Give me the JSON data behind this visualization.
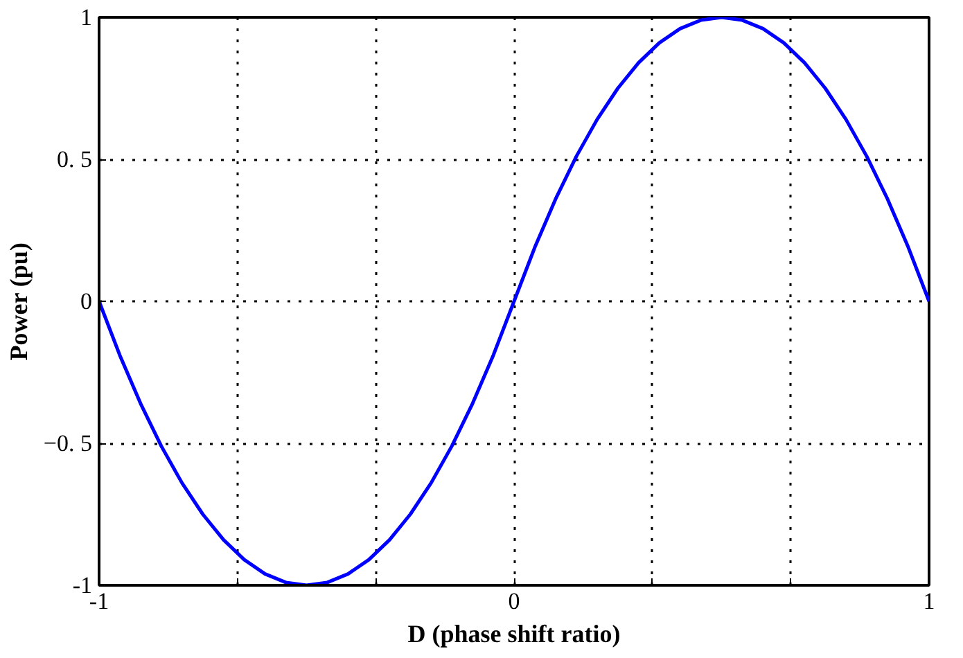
{
  "chart_data": {
    "type": "line",
    "xlabel": "D (phase shift ratio)",
    "ylabel": "Power (pu)",
    "x": [
      -1,
      -0.95,
      -0.9,
      -0.85,
      -0.8,
      -0.75,
      -0.7,
      -0.65,
      -0.6,
      -0.55,
      -0.5,
      -0.45,
      -0.4,
      -0.35,
      -0.3,
      -0.25,
      -0.2,
      -0.15,
      -0.1,
      -0.05,
      0,
      0.05,
      0.1,
      0.15,
      0.2,
      0.25,
      0.3,
      0.35,
      0.4,
      0.45,
      0.5,
      0.55,
      0.6,
      0.65,
      0.7,
      0.75,
      0.8,
      0.85,
      0.9,
      0.95,
      1
    ],
    "series": [
      {
        "color": "#0000ff",
        "values": [
          0,
          -0.19,
          -0.36,
          -0.51,
          -0.64,
          -0.75,
          -0.84,
          -0.91,
          -0.96,
          -0.99,
          -1,
          -0.99,
          -0.96,
          -0.91,
          -0.84,
          -0.75,
          -0.64,
          -0.51,
          -0.36,
          -0.19,
          0,
          0.19,
          0.36,
          0.51,
          0.64,
          0.75,
          0.84,
          0.91,
          0.96,
          0.99,
          1,
          0.99,
          0.96,
          0.91,
          0.84,
          0.75,
          0.64,
          0.51,
          0.36,
          0.19,
          0
        ]
      }
    ],
    "xlim": [
      -1,
      1
    ],
    "ylim": [
      -1,
      1
    ],
    "xticks": [
      -1,
      {
        "value": -0.6667,
        "label": null
      },
      {
        "value": -0.3333,
        "label": null
      },
      0,
      {
        "value": 0.3333,
        "label": null
      },
      {
        "value": 0.6667,
        "label": null
      },
      1
    ],
    "yticks": [
      -1,
      {
        "value": -0.5,
        "label": "−0. 5"
      },
      0,
      {
        "value": 0.5,
        "label": "0. 5"
      },
      1
    ],
    "grid": true,
    "line_style": "solid",
    "marker": "none"
  }
}
